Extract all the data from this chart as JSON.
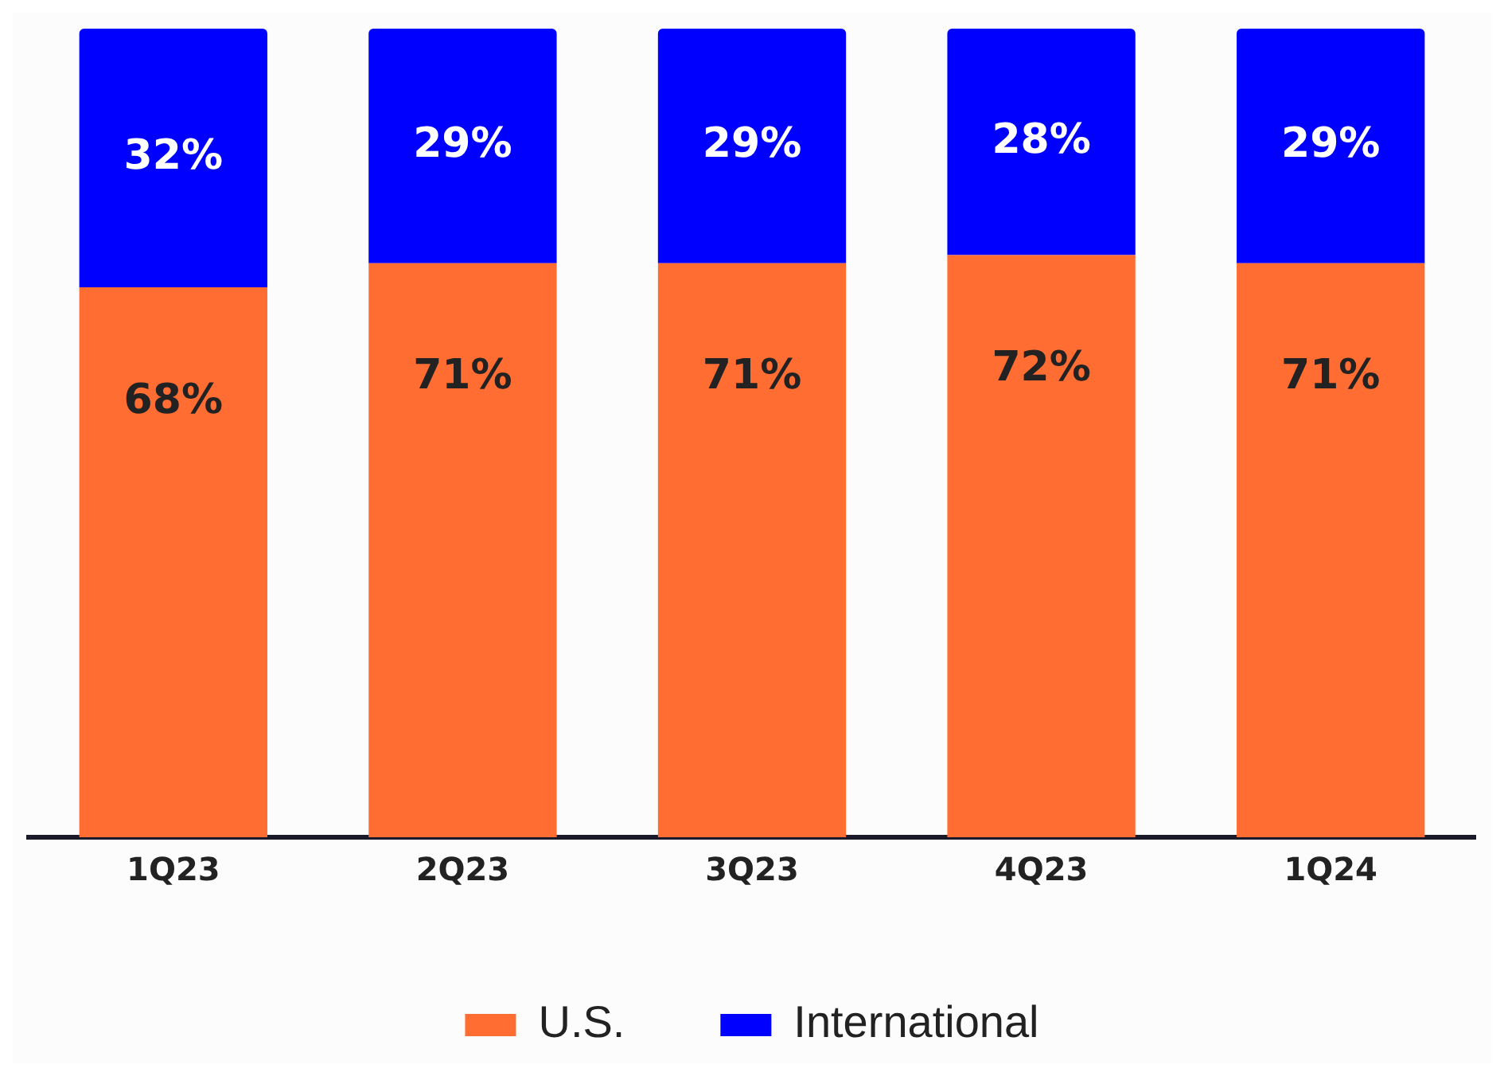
{
  "chart_data": {
    "type": "bar",
    "stacked": true,
    "categories": [
      "1Q23",
      "2Q23",
      "3Q23",
      "4Q23",
      "1Q24"
    ],
    "series": [
      {
        "name": "U.S.",
        "color": "#ff6d33",
        "values": [
          68,
          71,
          71,
          72,
          71
        ],
        "value_labels": [
          "68%",
          "71%",
          "71%",
          "72%",
          "71%"
        ]
      },
      {
        "name": "International",
        "color": "#0000ff",
        "values": [
          32,
          29,
          29,
          28,
          29
        ],
        "value_labels": [
          "32%",
          "29%",
          "29%",
          "28%",
          "29%"
        ]
      }
    ],
    "legend": "bottom",
    "grid": false,
    "tick_labels": "x"
  }
}
